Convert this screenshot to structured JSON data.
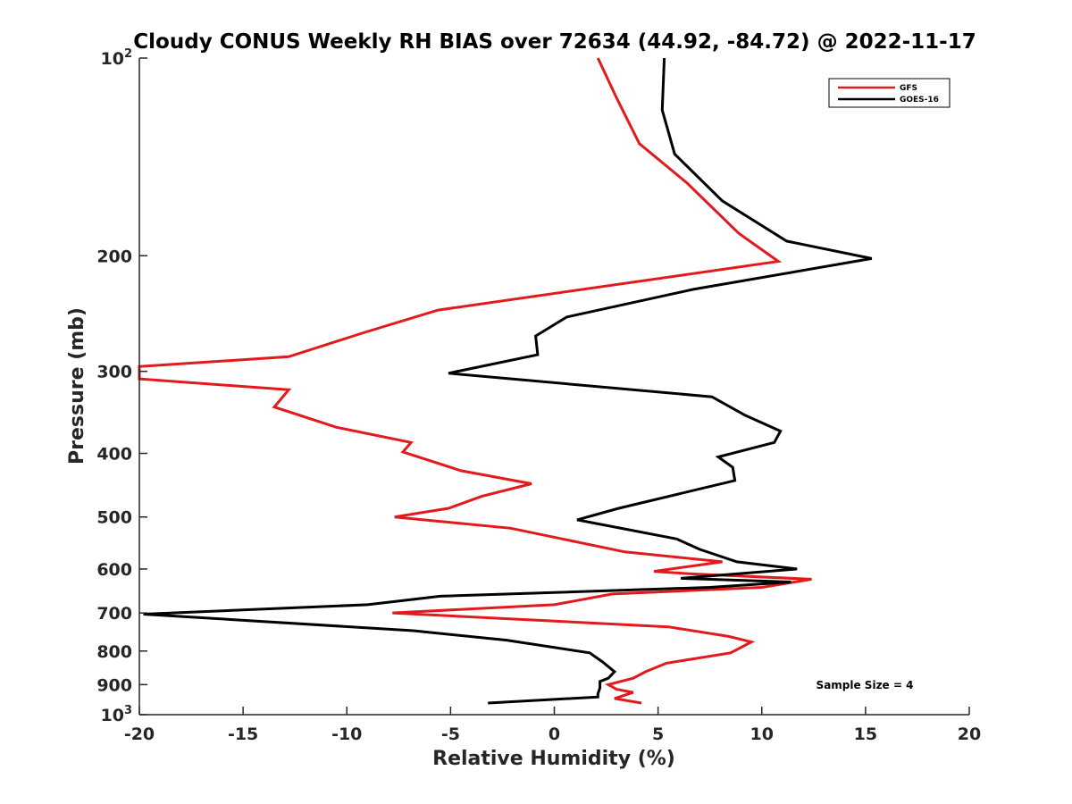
{
  "chart_data": {
    "type": "line",
    "title": "Cloudy CONUS Weekly RH BIAS over 72634 (44.92, -84.72) @ 2022-11-17",
    "xlabel": "Relative Humidity (%)",
    "ylabel": "Pressure (mb)",
    "xlim": [
      -20,
      20
    ],
    "ylim": [
      100,
      1000
    ],
    "y_scale": "log",
    "y_reversed": true,
    "grid": false,
    "legend_position": "top-right",
    "x_ticks": [
      -20,
      -15,
      -10,
      -5,
      0,
      5,
      10,
      15,
      20
    ],
    "x_tick_labels": [
      "-20",
      "-15",
      "-10",
      "-5",
      "0",
      "5",
      "10",
      "15",
      "20"
    ],
    "y_ticks": [
      100,
      200,
      300,
      400,
      500,
      600,
      700,
      800,
      900,
      1000
    ],
    "y_tick_labels": [
      {
        "base": "10",
        "exp": "2"
      },
      {
        "base": "200",
        "exp": ""
      },
      {
        "base": "300",
        "exp": ""
      },
      {
        "base": "400",
        "exp": ""
      },
      {
        "base": "500",
        "exp": ""
      },
      {
        "base": "600",
        "exp": ""
      },
      {
        "base": "700",
        "exp": ""
      },
      {
        "base": "800",
        "exp": ""
      },
      {
        "base": "900",
        "exp": ""
      },
      {
        "base": "10",
        "exp": "3"
      }
    ],
    "annotation": "Sample Size = 4",
    "series": [
      {
        "name": "GFS",
        "color": "#e31a1c",
        "points": [
          [
            2.1,
            100
          ],
          [
            3.0,
            115
          ],
          [
            4.1,
            135
          ],
          [
            6.4,
            155
          ],
          [
            8.9,
            185
          ],
          [
            10.8,
            204
          ],
          [
            -5.6,
            242
          ],
          [
            -9.2,
            262
          ],
          [
            -12.8,
            285
          ],
          [
            -20.0,
            295
          ],
          [
            -20.0,
            308
          ],
          [
            -12.8,
            320
          ],
          [
            -13.5,
            340
          ],
          [
            -10.5,
            365
          ],
          [
            -6.9,
            385
          ],
          [
            -7.3,
            398
          ],
          [
            -4.5,
            425
          ],
          [
            -1.1,
            445
          ],
          [
            -3.5,
            465
          ],
          [
            -5.1,
            485
          ],
          [
            -7.7,
            500
          ],
          [
            -2.1,
            520
          ],
          [
            3.4,
            565
          ],
          [
            8.1,
            585
          ],
          [
            4.8,
            605
          ],
          [
            6.5,
            610
          ],
          [
            12.4,
            622
          ],
          [
            10.0,
            640
          ],
          [
            2.8,
            655
          ],
          [
            0.0,
            680
          ],
          [
            -7.8,
            700
          ],
          [
            5.5,
            735
          ],
          [
            8.4,
            760
          ],
          [
            9.5,
            775
          ],
          [
            8.5,
            805
          ],
          [
            5.4,
            835
          ],
          [
            4.4,
            860
          ],
          [
            3.8,
            880
          ],
          [
            2.6,
            900
          ],
          [
            3.0,
            915
          ],
          [
            3.8,
            925
          ],
          [
            2.9,
            945
          ],
          [
            4.2,
            960
          ]
        ]
      },
      {
        "name": "GOES-16",
        "color": "#000000",
        "points": [
          [
            5.3,
            100
          ],
          [
            5.2,
            120
          ],
          [
            5.8,
            140
          ],
          [
            8.1,
            165
          ],
          [
            11.2,
            190
          ],
          [
            15.3,
            202
          ],
          [
            6.7,
            225
          ],
          [
            0.6,
            248
          ],
          [
            -0.9,
            265
          ],
          [
            -0.8,
            283
          ],
          [
            -5.1,
            302
          ],
          [
            7.6,
            328
          ],
          [
            9.2,
            350
          ],
          [
            10.9,
            370
          ],
          [
            10.6,
            385
          ],
          [
            7.9,
            405
          ],
          [
            8.6,
            420
          ],
          [
            8.7,
            440
          ],
          [
            3.1,
            485
          ],
          [
            1.1,
            505
          ],
          [
            5.9,
            540
          ],
          [
            7.0,
            560
          ],
          [
            8.8,
            585
          ],
          [
            11.7,
            600
          ],
          [
            6.1,
            620
          ],
          [
            11.4,
            628
          ],
          [
            7.5,
            640
          ],
          [
            -5.5,
            660
          ],
          [
            -9.0,
            680
          ],
          [
            -19.8,
            703
          ],
          [
            -6.8,
            745
          ],
          [
            -2.3,
            770
          ],
          [
            1.7,
            805
          ],
          [
            2.3,
            830
          ],
          [
            2.9,
            860
          ],
          [
            2.6,
            880
          ],
          [
            2.2,
            890
          ],
          [
            2.2,
            910
          ],
          [
            2.1,
            930
          ],
          [
            2.1,
            940
          ],
          [
            -3.2,
            960
          ]
        ]
      }
    ]
  }
}
